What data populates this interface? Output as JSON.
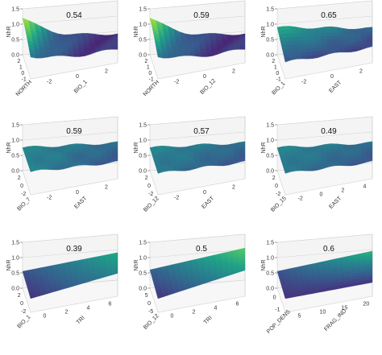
{
  "chart_data": [
    {
      "type": "surface3d",
      "value": "0.54",
      "zlabel": "NhR",
      "xlabel": "NORTH",
      "ylabel": "BIO_1",
      "zticks": [
        "0.0",
        "0.5",
        "1.0",
        "1.5"
      ],
      "xticks": [
        "2",
        "1",
        "0",
        "-1"
      ],
      "yticks": [
        "-2",
        "0",
        "2"
      ],
      "surface": {
        "shape": "tail-high-back",
        "z_front_left": 0.5,
        "z_front_right": 0.45,
        "z_back_left": 1.2,
        "z_back_right": 0.45
      },
      "colormap": "viridis"
    },
    {
      "type": "surface3d",
      "value": "0.59",
      "zlabel": "NhR",
      "xlabel": "NORTH",
      "ylabel": "BIO_12",
      "zticks": [
        "0.0",
        "0.5",
        "1.0",
        "1.5"
      ],
      "xticks": [
        "2",
        "1",
        "0",
        "-1"
      ],
      "yticks": [
        "-2",
        "0",
        "2"
      ],
      "surface": {
        "shape": "tail-high-back",
        "z_front_left": 0.5,
        "z_front_right": 0.45,
        "z_back_left": 1.2,
        "z_back_right": 0.45
      },
      "colormap": "viridis"
    },
    {
      "type": "surface3d",
      "value": "0.65",
      "zlabel": "NhR",
      "xlabel": "BIO_1",
      "ylabel": "EAST",
      "zticks": [
        "0.0",
        "0.5",
        "1.0",
        "1.5"
      ],
      "xticks": [
        "2",
        "1",
        "0",
        "-1"
      ],
      "yticks": [
        "-2",
        "0",
        "2"
      ],
      "surface": {
        "shape": "flat",
        "z_front_left": 0.55,
        "z_front_right": 0.5,
        "z_back_left": 0.9,
        "z_back_right": 0.6
      },
      "colormap": "viridis"
    },
    {
      "type": "surface3d",
      "value": "0.59",
      "zlabel": "NhR",
      "xlabel": "BIO_7",
      "ylabel": "EAST",
      "zticks": [
        "0.0",
        "0.5",
        "1.0",
        "1.5"
      ],
      "xticks": [
        "2",
        "0",
        "-2"
      ],
      "yticks": [
        "-2",
        "0",
        "2"
      ],
      "surface": {
        "shape": "flat",
        "z_front_left": 0.75,
        "z_front_right": 0.55,
        "z_back_left": 0.75,
        "z_back_right": 0.65
      },
      "colormap": "viridis"
    },
    {
      "type": "surface3d",
      "value": "0.57",
      "zlabel": "NhR",
      "xlabel": "BIO_12",
      "ylabel": "EAST",
      "zticks": [
        "0.0",
        "0.5",
        "1.0",
        "1.5"
      ],
      "xticks": [
        "2",
        "0",
        "-2"
      ],
      "yticks": [
        "-2",
        "0",
        "2"
      ],
      "surface": {
        "shape": "flat",
        "z_front_left": 0.7,
        "z_front_right": 0.55,
        "z_back_left": 0.75,
        "z_back_right": 0.65
      },
      "colormap": "viridis"
    },
    {
      "type": "surface3d",
      "value": "0.49",
      "zlabel": "NhR",
      "xlabel": "BIO_15",
      "ylabel": "EAST",
      "zticks": [
        "0.0",
        "0.5",
        "1.0",
        "1.5"
      ],
      "xticks": [
        "2",
        "0",
        "-2"
      ],
      "yticks": [
        "-2",
        "0",
        "2",
        "4"
      ],
      "surface": {
        "shape": "flat",
        "z_front_left": 0.7,
        "z_front_right": 0.55,
        "z_back_left": 0.75,
        "z_back_right": 0.65
      },
      "colormap": "viridis"
    },
    {
      "type": "surface3d",
      "value": "0.39",
      "zlabel": "NhR",
      "xlabel": "BIO_1",
      "ylabel": "TRI",
      "zticks": [
        "0.0",
        "0.5",
        "1.0",
        "1.5"
      ],
      "xticks": [
        "2",
        "0",
        "-2"
      ],
      "yticks": [
        "0",
        "2",
        "4",
        "6"
      ],
      "surface": {
        "shape": "plane",
        "z_front_left": 0.45,
        "z_front_right": 0.75,
        "z_back_left": 0.55,
        "z_back_right": 0.9
      },
      "colormap": "viridis"
    },
    {
      "type": "surface3d",
      "value": "0.5",
      "zlabel": "NhR",
      "xlabel": "BIO_12",
      "ylabel": "TRI",
      "zticks": [
        "0.0",
        "0.5",
        "1.0",
        "1.5"
      ],
      "xticks": [
        "5",
        "0",
        "-5"
      ],
      "yticks": [
        "0",
        "2",
        "4",
        "6"
      ],
      "surface": {
        "shape": "plane",
        "z_front_left": 0.45,
        "z_front_right": 0.85,
        "z_back_left": 0.6,
        "z_back_right": 1.05
      },
      "colormap": "viridis"
    },
    {
      "type": "surface3d",
      "value": "0.6",
      "zlabel": "NhR",
      "xlabel": "POP_DENS",
      "ylabel": "FRAG_IND",
      "zticks": [
        "0.0",
        "0.5",
        "1.0",
        "1.5"
      ],
      "xticks": [
        "0",
        "-1"
      ],
      "yticks": [
        "5",
        "10",
        "15",
        "20"
      ],
      "surface": {
        "shape": "plane",
        "z_front_left": 0.45,
        "z_front_right": 0.45,
        "z_back_left": 0.55,
        "z_back_right": 0.95
      },
      "colormap": "viridis"
    }
  ],
  "colors": {
    "viridis": [
      "#440154",
      "#46327e",
      "#365c8d",
      "#277f8e",
      "#1fa187",
      "#4ac16d",
      "#a0da39",
      "#fde725"
    ],
    "axis": "#777777",
    "text": "#333333"
  }
}
